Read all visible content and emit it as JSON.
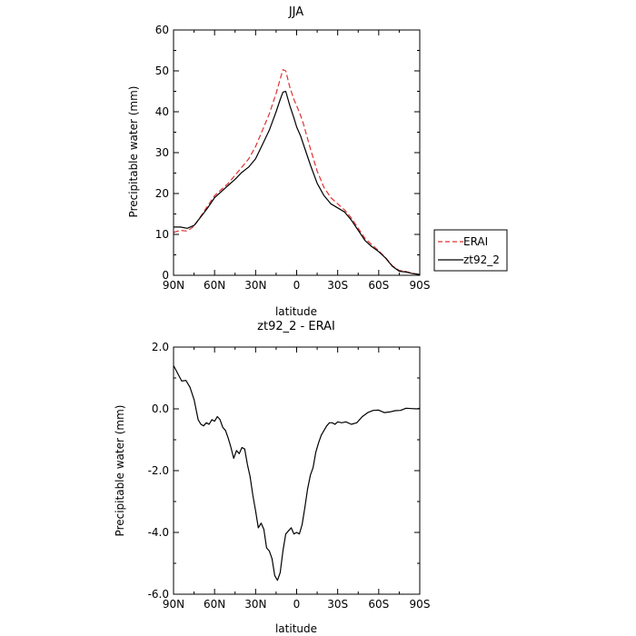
{
  "chart_data": [
    {
      "type": "line",
      "title": "JJA",
      "xlabel": "latitude",
      "ylabel": "Precipitable water (mm)",
      "xlim": [
        90,
        -90
      ],
      "ylim": [
        0,
        60
      ],
      "x_ticks": [
        90,
        60,
        30,
        0,
        -30,
        -60,
        -90
      ],
      "x_tick_labels": [
        "90N",
        "60N",
        "30N",
        "0",
        "30S",
        "60S",
        "90S"
      ],
      "y_ticks": [
        0,
        10,
        20,
        30,
        40,
        50,
        60
      ],
      "y_tick_labels": [
        "0",
        "10",
        "20",
        "30",
        "40",
        "50",
        "60"
      ],
      "legend": {
        "placement": "right",
        "entries": [
          {
            "name": "ERAI",
            "color": "#e03030",
            "dash": "dashed"
          },
          {
            "name": "zt92_2",
            "color": "#000000",
            "dash": "solid"
          }
        ]
      },
      "series": [
        {
          "name": "ERAI",
          "color": "#e03030",
          "dash": "dashed",
          "x": [
            90,
            85,
            80,
            75,
            70,
            65,
            60,
            55,
            50,
            45,
            40,
            35,
            30,
            25,
            20,
            15,
            12,
            10,
            8,
            5,
            2,
            0,
            -3,
            -5,
            -10,
            -15,
            -20,
            -25,
            -30,
            -35,
            -40,
            -45,
            -50,
            -55,
            -60,
            -65,
            -70,
            -75,
            -80,
            -85,
            -90
          ],
          "y": [
            10.5,
            11,
            10.8,
            12,
            14.5,
            17,
            19.5,
            21,
            22.5,
            24.5,
            26.5,
            28.5,
            31.5,
            35.5,
            39.5,
            44.5,
            48,
            50.3,
            50,
            46,
            43,
            41.5,
            39,
            37,
            31,
            25.5,
            21.5,
            19,
            17.5,
            16,
            14,
            11.5,
            9,
            7.5,
            6,
            4.3,
            2.3,
            1.2,
            0.9,
            0.5,
            0.2
          ]
        },
        {
          "name": "zt92_2",
          "color": "#000000",
          "dash": "solid",
          "x": [
            90,
            85,
            80,
            75,
            70,
            65,
            60,
            55,
            50,
            45,
            40,
            35,
            30,
            25,
            20,
            15,
            12,
            10,
            8,
            5,
            2,
            0,
            -3,
            -5,
            -10,
            -15,
            -20,
            -25,
            -30,
            -35,
            -40,
            -45,
            -50,
            -55,
            -60,
            -65,
            -70,
            -75,
            -80,
            -85,
            -90
          ],
          "y": [
            11.8,
            11.8,
            11.5,
            12.2,
            14.3,
            16.5,
            19,
            20.5,
            22,
            23.5,
            25.2,
            26.5,
            28.5,
            32,
            35.5,
            40,
            43,
            44.8,
            45,
            41.5,
            38.5,
            36.3,
            34,
            32,
            27,
            22.5,
            19.5,
            17.5,
            16.5,
            15.5,
            13.5,
            11,
            8.5,
            7,
            5.8,
            4.2,
            2.2,
            1,
            0.8,
            0.4,
            0.2
          ]
        }
      ]
    },
    {
      "type": "line",
      "title": "zt92_2 - ERAI",
      "xlabel": "latitude",
      "ylabel": "Precipitable water (mm)",
      "xlim": [
        90,
        -90
      ],
      "ylim": [
        -6,
        2
      ],
      "x_ticks": [
        90,
        60,
        30,
        0,
        -30,
        -60,
        -90
      ],
      "x_tick_labels": [
        "90N",
        "60N",
        "30N",
        "0",
        "30S",
        "60S",
        "90S"
      ],
      "y_ticks": [
        2,
        0,
        -2,
        -4,
        -6
      ],
      "y_tick_labels": [
        "2.0",
        "0.0",
        "-2.0",
        "-4.0",
        "-6.0"
      ],
      "series": [
        {
          "name": "zt92_2 - ERAI",
          "color": "#000000",
          "dash": "solid",
          "x": [
            90,
            87,
            84,
            81,
            78,
            75,
            72,
            70,
            68,
            66,
            64,
            62,
            60,
            58,
            56,
            54,
            52,
            50,
            48,
            46,
            44,
            42,
            40,
            38,
            36,
            34,
            32,
            30,
            28,
            26,
            24,
            22,
            20,
            18,
            16,
            14,
            12,
            10,
            8,
            6,
            4,
            2,
            0,
            -2,
            -4,
            -6,
            -8,
            -10,
            -12,
            -14,
            -16,
            -18,
            -20,
            -22,
            -24,
            -26,
            -28,
            -30,
            -33,
            -36,
            -40,
            -44,
            -48,
            -52,
            -56,
            -60,
            -64,
            -68,
            -72,
            -76,
            -80,
            -84,
            -88,
            -90
          ],
          "y": [
            1.4,
            1.15,
            0.9,
            0.92,
            0.7,
            0.3,
            -0.35,
            -0.5,
            -0.55,
            -0.45,
            -0.5,
            -0.35,
            -0.4,
            -0.25,
            -0.35,
            -0.6,
            -0.7,
            -0.95,
            -1.25,
            -1.6,
            -1.35,
            -1.45,
            -1.25,
            -1.3,
            -1.8,
            -2.2,
            -2.8,
            -3.3,
            -3.85,
            -3.7,
            -3.9,
            -4.5,
            -4.6,
            -4.85,
            -5.4,
            -5.55,
            -5.3,
            -4.6,
            -4.05,
            -3.95,
            -3.85,
            -4.05,
            -4.0,
            -4.05,
            -3.75,
            -3.2,
            -2.6,
            -2.15,
            -1.9,
            -1.4,
            -1.1,
            -0.85,
            -0.7,
            -0.55,
            -0.45,
            -0.45,
            -0.5,
            -0.42,
            -0.45,
            -0.42,
            -0.5,
            -0.45,
            -0.25,
            -0.12,
            -0.05,
            -0.04,
            -0.12,
            -0.1,
            -0.06,
            -0.05,
            0.02,
            0.01,
            0.0,
            0.02
          ]
        }
      ]
    }
  ]
}
